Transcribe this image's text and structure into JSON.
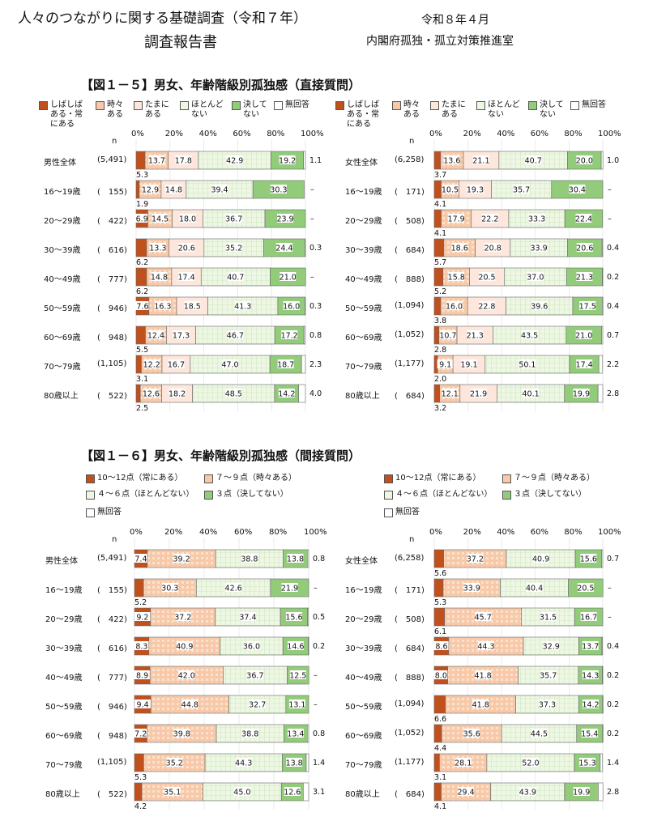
{
  "header": {
    "title": "人々のつながりに関する基礎調査（令和７年）",
    "subtitle": "調査報告書",
    "date": "令和８年４月",
    "org": "内閣府孤独・孤立対策推進室"
  },
  "fig5": {
    "title": "【図１－５】男女、年齢階級別孤独感（直接質問）",
    "legend": [
      "しばしば\nある・常\nにある",
      "時々\nある",
      "たまに\nある",
      "ほとんど\nない",
      "決して\nない",
      "無回答"
    ]
  },
  "fig6": {
    "title": "【図１－６】男女、年齢階級別孤独感（間接質問）",
    "legend": [
      "10～12点（常にある）",
      "７～９点（時々ある）",
      "４～６点（ほとんどない）",
      "３点（決してない）",
      "無回答"
    ]
  },
  "colors": {
    "c1": "#c0501c",
    "c2": "#f7c9a8",
    "c3": "#fde6dc",
    "c4": "#eef7e4",
    "c5": "#92cc7a",
    "c6": "#ffffff"
  },
  "chart_data": [
    {
      "type": "bar",
      "stacked": true,
      "orientation": "horizontal",
      "title": "【図１－５】男女、年齢階級別孤独感（直接質問）",
      "panel": "男性",
      "n_label": "n",
      "xticks": [
        "0%",
        "20%",
        "40%",
        "60%",
        "80%",
        "100%"
      ],
      "categories": [
        "男性全体",
        "16～19歳",
        "20～29歳",
        "30～39歳",
        "40～49歳",
        "50～59歳",
        "60～69歳",
        "70～79歳",
        "80歳以上"
      ],
      "n": [
        "(5,491)",
        "(　155)",
        "(　422)",
        "(　616)",
        "(　777)",
        "(　946)",
        "(　948)",
        "(1,105)",
        "(　522)"
      ],
      "series": [
        {
          "name": "しばしばある・常にある",
          "values": [
            5.3,
            1.9,
            6.9,
            6.2,
            6.2,
            7.6,
            5.5,
            3.1,
            2.5
          ]
        },
        {
          "name": "時々ある",
          "values": [
            13.7,
            12.9,
            14.5,
            13.3,
            14.8,
            16.3,
            12.4,
            12.2,
            12.6
          ]
        },
        {
          "name": "たまにある",
          "values": [
            17.8,
            14.8,
            18.0,
            20.6,
            17.4,
            18.5,
            17.3,
            16.7,
            18.2
          ]
        },
        {
          "name": "ほとんどない",
          "values": [
            42.9,
            39.4,
            36.7,
            35.2,
            40.7,
            41.3,
            46.7,
            47.0,
            48.5
          ]
        },
        {
          "name": "決してない",
          "values": [
            19.2,
            30.3,
            23.9,
            24.4,
            21.0,
            16.0,
            17.2,
            18.7,
            14.2
          ]
        },
        {
          "name": "無回答",
          "values": [
            1.1,
            null,
            null,
            0.3,
            null,
            0.3,
            0.8,
            2.3,
            4.0
          ]
        }
      ]
    },
    {
      "type": "bar",
      "stacked": true,
      "orientation": "horizontal",
      "title": "【図１－５】男女、年齢階級別孤独感（直接質問）",
      "panel": "女性",
      "n_label": "n",
      "xticks": [
        "0%",
        "20%",
        "40%",
        "60%",
        "80%",
        "100%"
      ],
      "categories": [
        "女性全体",
        "16～19歳",
        "20～29歳",
        "30～39歳",
        "40～49歳",
        "50～59歳",
        "60～69歳",
        "70～79歳",
        "80歳以上"
      ],
      "n": [
        "(6,258)",
        "(　171)",
        "(　508)",
        "(　684)",
        "(　888)",
        "(1,094)",
        "(1,052)",
        "(1,177)",
        "(　684)"
      ],
      "series": [
        {
          "name": "しばしばある・常にある",
          "values": [
            3.7,
            4.1,
            4.1,
            5.7,
            5.2,
            3.8,
            2.8,
            2.0,
            3.2
          ]
        },
        {
          "name": "時々ある",
          "values": [
            13.6,
            10.5,
            17.9,
            18.6,
            15.8,
            16.0,
            10.7,
            9.1,
            12.1
          ]
        },
        {
          "name": "たまにある",
          "values": [
            21.1,
            19.3,
            22.2,
            20.8,
            20.5,
            22.8,
            21.3,
            19.1,
            21.9
          ]
        },
        {
          "name": "ほとんどない",
          "values": [
            40.7,
            35.7,
            33.3,
            33.9,
            37.0,
            39.6,
            43.5,
            50.1,
            40.1
          ]
        },
        {
          "name": "決してない",
          "values": [
            20.0,
            30.4,
            22.4,
            20.6,
            21.3,
            17.5,
            21.0,
            17.4,
            19.9
          ]
        },
        {
          "name": "無回答",
          "values": [
            1.0,
            null,
            null,
            0.4,
            0.2,
            0.4,
            0.7,
            2.2,
            2.8
          ]
        }
      ]
    },
    {
      "type": "bar",
      "stacked": true,
      "orientation": "horizontal",
      "title": "【図１－６】男女、年齢階級別孤独感（間接質問）",
      "panel": "男性",
      "n_label": "n",
      "xticks": [
        "0%",
        "20%",
        "40%",
        "60%",
        "80%",
        "100%"
      ],
      "categories": [
        "男性全体",
        "16～19歳",
        "20～29歳",
        "30～39歳",
        "40～49歳",
        "50～59歳",
        "60～69歳",
        "70～79歳",
        "80歳以上"
      ],
      "n": [
        "(5,491)",
        "(　155)",
        "(　422)",
        "(　616)",
        "(　777)",
        "(　946)",
        "(　948)",
        "(1,105)",
        "(　522)"
      ],
      "series": [
        {
          "name": "10～12点（常にある）",
          "values": [
            7.4,
            5.2,
            9.2,
            8.3,
            8.9,
            9.4,
            7.2,
            5.3,
            4.2
          ]
        },
        {
          "name": "７～９点（時々ある）",
          "values": [
            39.2,
            30.3,
            37.2,
            40.9,
            42.0,
            44.8,
            39.8,
            35.2,
            35.1
          ]
        },
        {
          "name": "４～６点（ほとんどない）",
          "values": [
            38.8,
            42.6,
            37.4,
            36.0,
            36.7,
            32.7,
            38.8,
            44.3,
            45.0
          ]
        },
        {
          "name": "３点（決してない）",
          "values": [
            13.8,
            21.9,
            15.6,
            14.6,
            12.5,
            13.1,
            13.4,
            13.8,
            12.6
          ]
        },
        {
          "name": "無回答",
          "values": [
            0.8,
            null,
            0.5,
            0.2,
            null,
            null,
            0.8,
            1.4,
            3.1
          ]
        }
      ]
    },
    {
      "type": "bar",
      "stacked": true,
      "orientation": "horizontal",
      "title": "【図１－６】男女、年齢階級別孤独感（間接質問）",
      "panel": "女性",
      "n_label": "n",
      "xticks": [
        "0%",
        "20%",
        "40%",
        "60%",
        "80%",
        "100%"
      ],
      "categories": [
        "女性全体",
        "16～19歳",
        "20～29歳",
        "30～39歳",
        "40～49歳",
        "50～59歳",
        "60～69歳",
        "70～79歳",
        "80歳以上"
      ],
      "n": [
        "(6,258)",
        "(　171)",
        "(　508)",
        "(　684)",
        "(　888)",
        "(1,094)",
        "(1,052)",
        "(1,177)",
        "(　684)"
      ],
      "series": [
        {
          "name": "10～12点（常にある）",
          "values": [
            5.6,
            5.3,
            6.1,
            8.6,
            8.0,
            6.6,
            4.4,
            3.1,
            4.1
          ]
        },
        {
          "name": "７～９点（時々ある）",
          "values": [
            37.2,
            33.9,
            45.7,
            44.3,
            41.8,
            41.8,
            35.6,
            28.1,
            29.4
          ]
        },
        {
          "name": "４～６点（ほとんどない）",
          "values": [
            40.9,
            40.4,
            31.5,
            32.9,
            35.7,
            37.3,
            44.5,
            52.0,
            43.9
          ]
        },
        {
          "name": "３点（決してない）",
          "values": [
            15.6,
            20.5,
            16.7,
            13.7,
            14.3,
            14.2,
            15.4,
            15.3,
            19.9
          ]
        },
        {
          "name": "無回答",
          "values": [
            0.7,
            null,
            null,
            0.4,
            0.2,
            0.2,
            0.2,
            1.4,
            2.8
          ]
        }
      ]
    }
  ]
}
